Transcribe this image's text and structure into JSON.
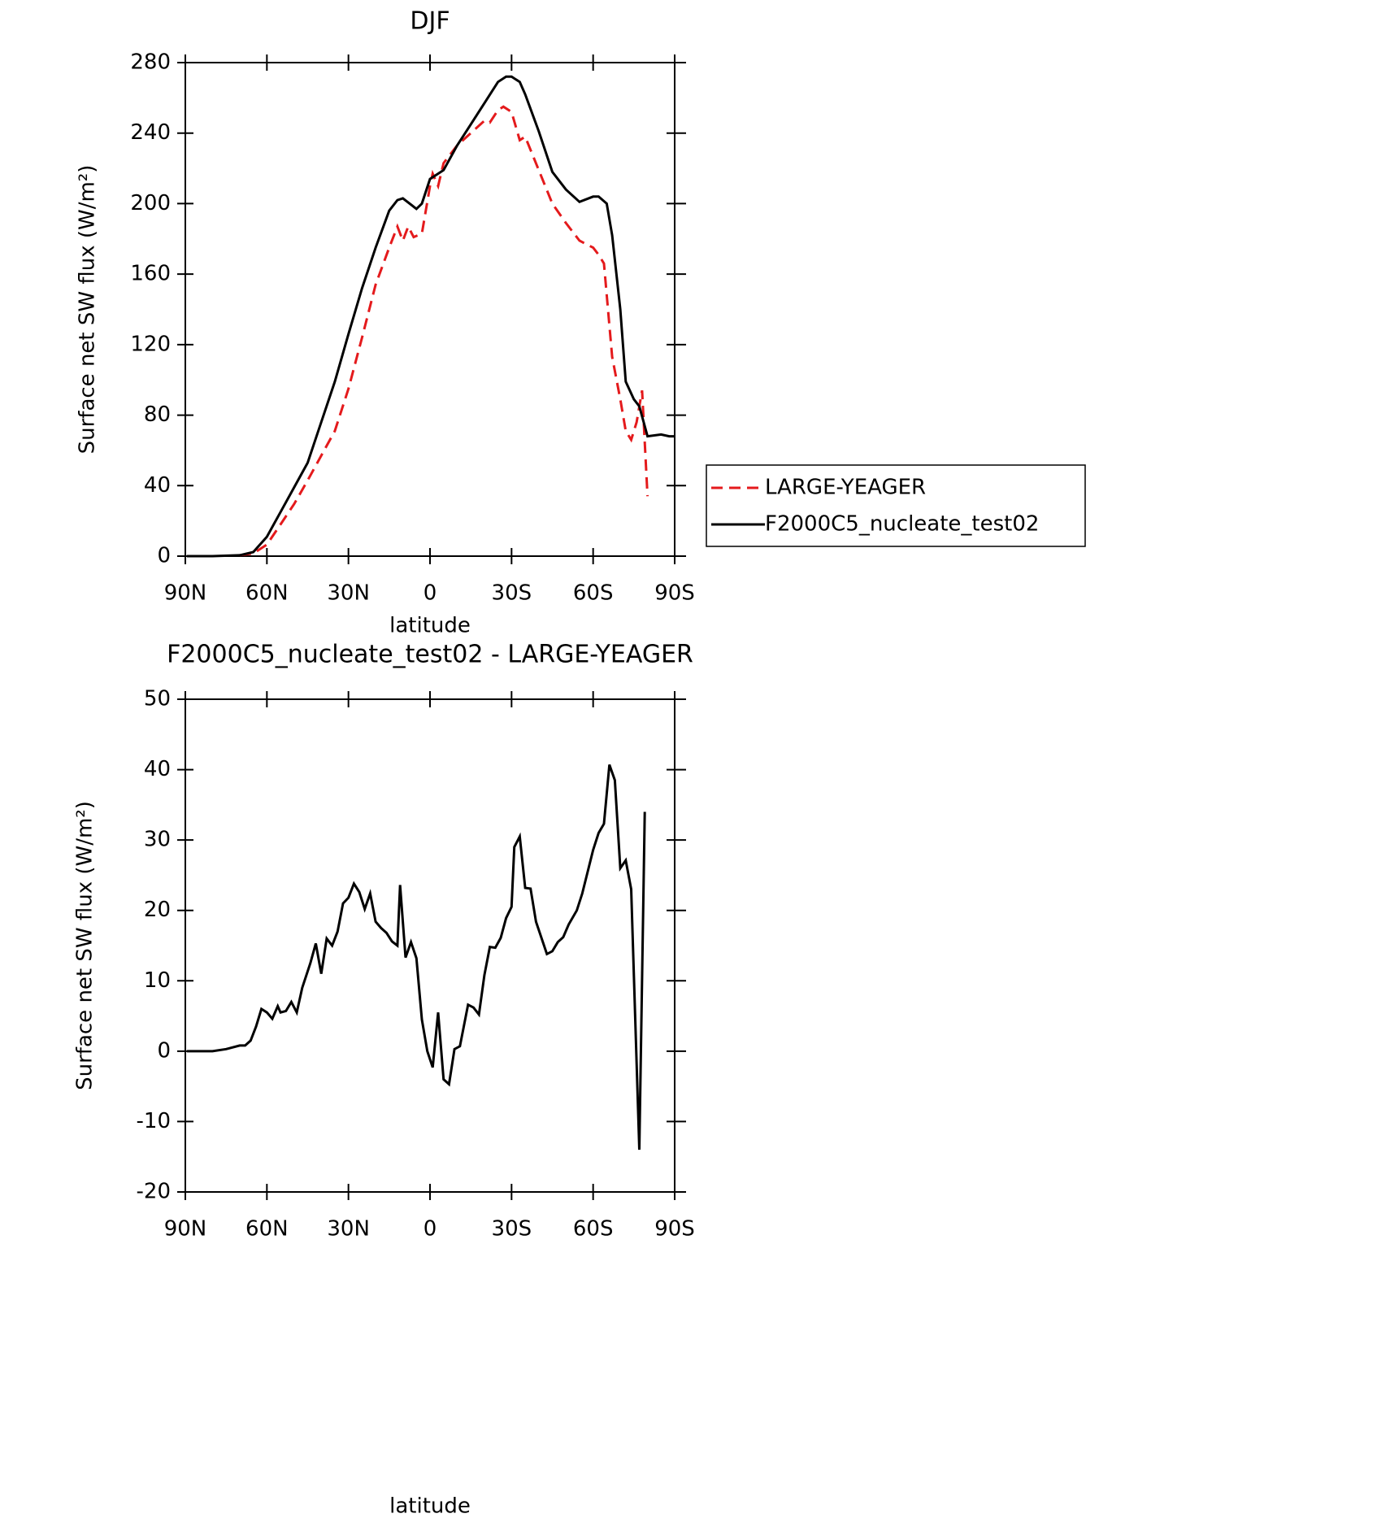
{
  "chart_data": [
    {
      "type": "line",
      "title": "DJF",
      "x_label": "latitude",
      "y_label": "Surface net SW flux (W/m²)",
      "xlim": [
        90,
        -90
      ],
      "ylim": [
        0,
        280
      ],
      "xticks": [
        {
          "value": 90,
          "label": "90N"
        },
        {
          "value": 60,
          "label": "60N"
        },
        {
          "value": 30,
          "label": "30N"
        },
        0,
        {
          "value": -30,
          "label": "30S"
        },
        {
          "value": -60,
          "label": "60S"
        },
        {
          "value": -90,
          "label": "90S"
        }
      ],
      "yticks": [
        0,
        40,
        80,
        120,
        160,
        200,
        240,
        280
      ],
      "legend": "right",
      "series": [
        {
          "name": "LARGE-YEAGER",
          "color": "#e41a1c",
          "linestyle": "dashed",
          "x": [
            70,
            65,
            60,
            55,
            50,
            45,
            40,
            35,
            30,
            25,
            20,
            15,
            12,
            10,
            8,
            6,
            3,
            0,
            -1,
            -3,
            -5,
            -10,
            -15,
            -20,
            -22,
            -25,
            -27,
            -30,
            -33,
            -35,
            -40,
            -45,
            -50,
            -55,
            -60,
            -62,
            -64,
            -67,
            -70,
            -72,
            -74,
            -76,
            -78,
            -80
          ],
          "values": [
            0.5,
            1.5,
            6.5,
            18,
            29.5,
            43,
            57,
            71,
            95,
            124,
            154,
            175,
            187,
            179,
            187,
            181,
            183,
            210,
            217,
            210,
            223,
            233,
            240,
            247,
            246,
            253,
            255,
            252,
            236,
            238,
            219,
            200,
            189,
            179,
            175,
            171,
            166,
            113,
            89,
            71,
            66,
            76,
            94,
            34
          ]
        },
        {
          "name": "F2000C5_nucleate_test02",
          "color": "#000000",
          "linestyle": "solid",
          "x": [
            89.4,
            80,
            70,
            65,
            60,
            55,
            50,
            45,
            40,
            35,
            30,
            25,
            20,
            15,
            12,
            10,
            5,
            3,
            0,
            -5,
            -10,
            -15,
            -20,
            -25,
            -28,
            -30,
            -33,
            -35,
            -40,
            -45,
            -50,
            -55,
            -60,
            -62,
            -65,
            -67,
            -70,
            -72,
            -75,
            -77,
            -80,
            -85,
            -88,
            -90
          ],
          "values": [
            0,
            0,
            0.5,
            2.3,
            11,
            25,
            39,
            53,
            76,
            99,
            126,
            152,
            175,
            196,
            202,
            203,
            197,
            200,
            214,
            219,
            233,
            245,
            257,
            269,
            272,
            272,
            269,
            262,
            241,
            218,
            208,
            201,
            204,
            204,
            200,
            182,
            140,
            99,
            89,
            85,
            68,
            69,
            68,
            68
          ]
        }
      ]
    },
    {
      "type": "line",
      "title": "F2000C5_nucleate_test02 - LARGE-YEAGER",
      "x_label": "latitude",
      "y_label": "Surface net SW flux (W/m²)",
      "xlim": [
        90,
        -90
      ],
      "ylim": [
        -20,
        50
      ],
      "xticks": [
        {
          "value": 90,
          "label": "90N"
        },
        {
          "value": 60,
          "label": "60N"
        },
        {
          "value": 30,
          "label": "30N"
        },
        0,
        {
          "value": -30,
          "label": "30S"
        },
        {
          "value": -60,
          "label": "60S"
        },
        {
          "value": -90,
          "label": "90S"
        }
      ],
      "yticks": [
        -20,
        -10,
        0,
        10,
        20,
        30,
        40,
        50
      ],
      "series": [
        {
          "color": "#000000",
          "linestyle": "solid",
          "x": [
            89.4,
            80,
            75,
            70,
            68,
            66,
            64,
            62,
            60,
            58,
            56,
            55,
            53,
            51,
            49,
            47,
            44,
            42,
            40,
            38,
            36,
            34,
            32,
            30,
            28,
            26,
            24,
            22,
            20,
            18,
            16,
            14,
            12,
            11,
            9,
            7,
            5,
            3,
            1,
            -1,
            -3,
            -5,
            -7,
            -9,
            -11,
            -14,
            -16,
            -18,
            -20,
            -22,
            -24,
            -26,
            -28,
            -30,
            -31,
            -33,
            -35,
            -37,
            -39,
            -43,
            -45,
            -47,
            -49,
            -51,
            -54,
            -56,
            -60,
            -62,
            -64,
            -66,
            -68,
            -70,
            -72,
            -74,
            -77,
            -79
          ],
          "values": [
            0,
            0,
            0.3,
            0.8,
            0.8,
            1.5,
            3.5,
            6,
            5.5,
            4.6,
            6.4,
            5.5,
            5.7,
            7,
            5.5,
            9,
            12.5,
            15.3,
            11,
            16,
            15,
            17,
            21,
            21.8,
            23.8,
            22.6,
            20.2,
            22.4,
            18.4,
            17.5,
            16.8,
            15.6,
            15,
            23.6,
            13.3,
            15.5,
            13.2,
            4.5,
            0,
            -2.3,
            5.5,
            -4,
            -4.7,
            0.3,
            0.7,
            6.6,
            6.2,
            5.2,
            10.8,
            14.8,
            14.7,
            16.1,
            18.9,
            20.5,
            29,
            30.5,
            23.2,
            23.1,
            18.4,
            13.8,
            14.2,
            15.5,
            16.2,
            18,
            20,
            22.4,
            28.6,
            31,
            32.3,
            40.7,
            38.5,
            26,
            27.1,
            23,
            -14,
            34
          ]
        }
      ]
    }
  ]
}
